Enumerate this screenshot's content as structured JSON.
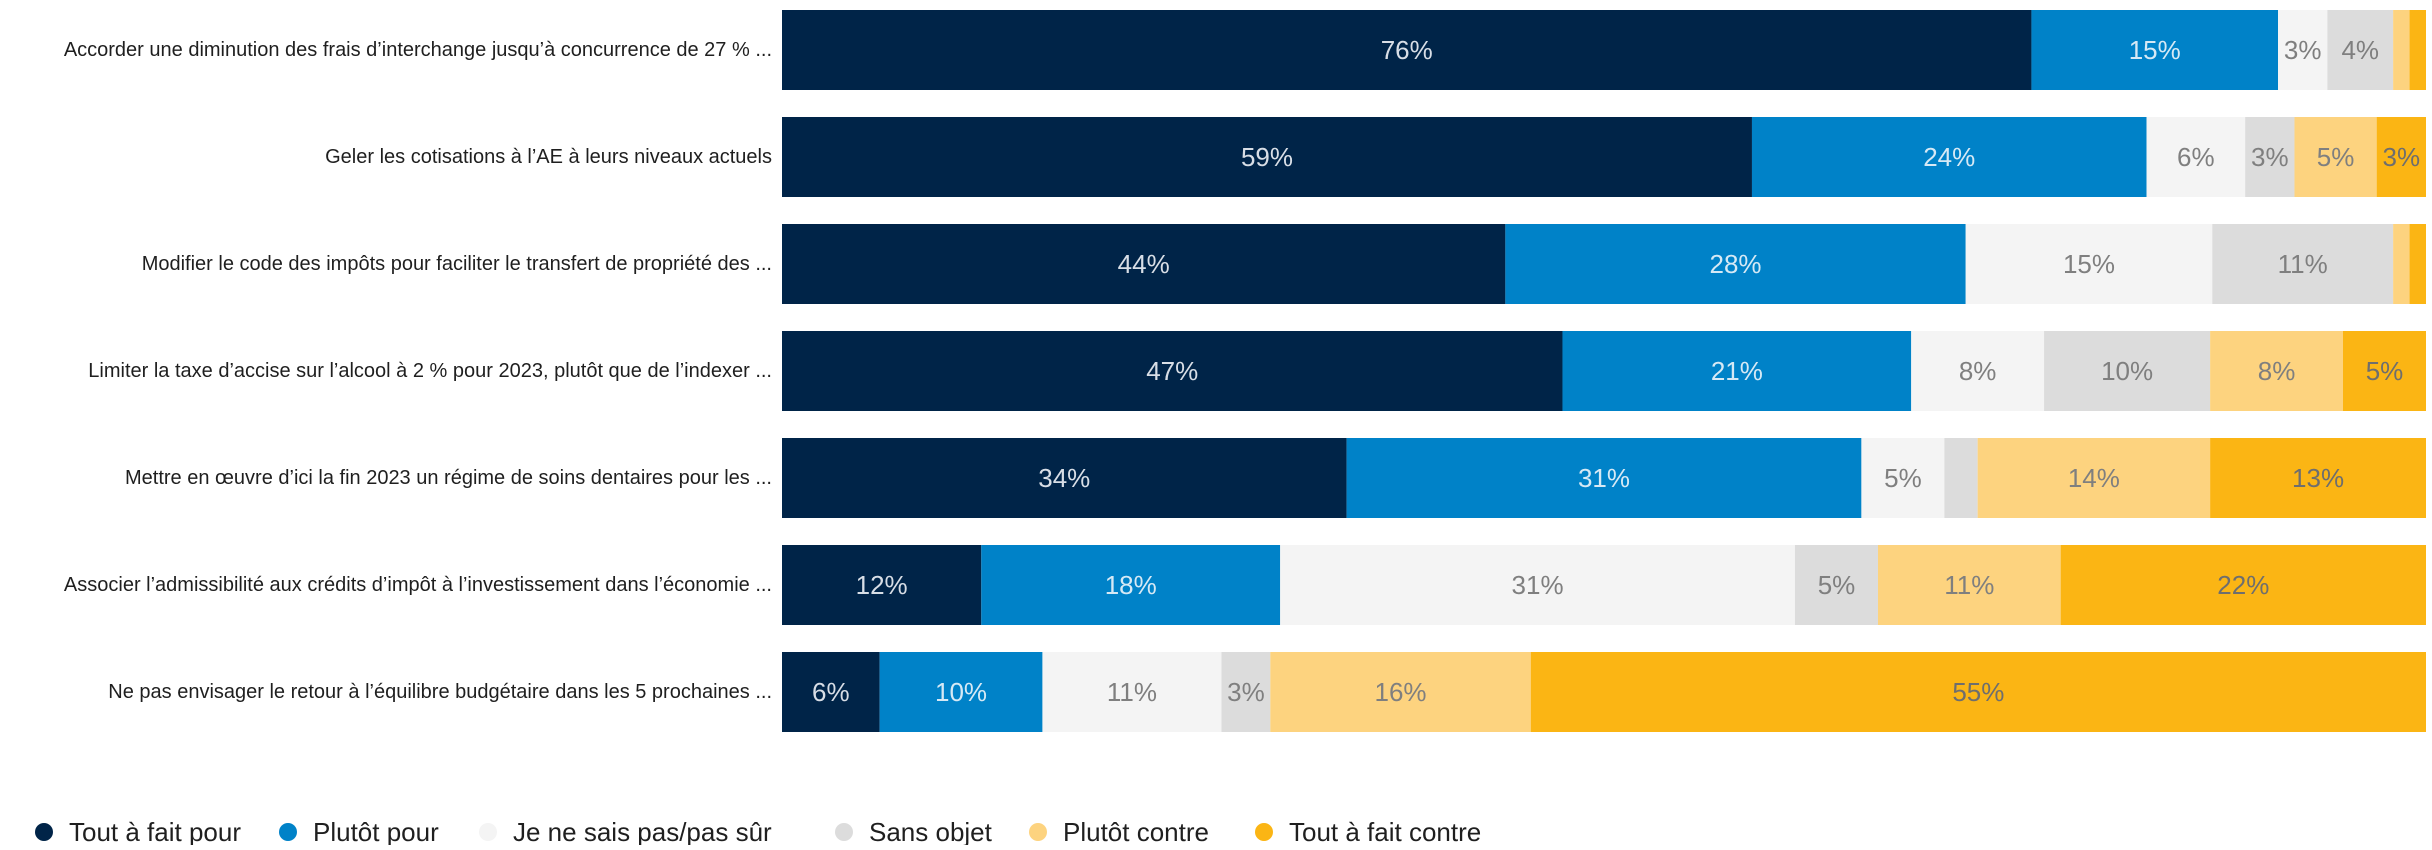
{
  "chart_data": {
    "type": "bar",
    "orientation": "horizontal",
    "stacked": true,
    "percent_stacked": true,
    "grid": false,
    "legend_position": "bottom-left",
    "categories": [
      "Accorder une diminution des frais d’interchange jusqu’à concurrence de 27 % ...",
      "Geler les cotisations à l’AE à leurs niveaux actuels",
      "Modifier le code des impôts pour faciliter le transfert de propriété des ...",
      "Limiter la taxe d’accise sur l’alcool à 2 % pour 2023, plutôt que de l’indexer ...",
      "Mettre en œuvre d’ici la fin 2023 un régime de soins dentaires pour les ...",
      "Associer l’admissibilité aux crédits d’impôt à l’investissement dans l’économie ...",
      "Ne pas envisager le retour à l’équilibre budgétaire dans les 5 prochaines ..."
    ],
    "series": [
      {
        "name": "Tout à fait pour",
        "color": "#002448",
        "label_color": "#d8dee6",
        "values": [
          76,
          59,
          44,
          47,
          34,
          12,
          6
        ],
        "labels": [
          "76%",
          "59%",
          "44%",
          "47%",
          "34%",
          "12%",
          "6%"
        ]
      },
      {
        "name": "Plutôt pour",
        "color": "#0082c8",
        "label_color": "#d6e9f5",
        "values": [
          15,
          24,
          28,
          21,
          31,
          18,
          10
        ],
        "labels": [
          "15%",
          "24%",
          "28%",
          "21%",
          "31%",
          "18%",
          "10%"
        ]
      },
      {
        "name": "Je ne sais pas/pas sûr",
        "color": "#f4f4f4",
        "label_color": "#7f7f7f",
        "values": [
          3,
          6,
          15,
          8,
          5,
          31,
          11
        ],
        "labels": [
          "3%",
          "6%",
          "15%",
          "8%",
          "5%",
          "31%",
          "11%"
        ]
      },
      {
        "name": "Sans objet",
        "color": "#dcdcdc",
        "label_color": "#7f7f7f",
        "values": [
          4,
          3,
          11,
          10,
          2,
          5,
          3
        ],
        "labels": [
          "4%",
          "3%",
          "11%",
          "10%",
          "",
          "5%",
          "3%"
        ]
      },
      {
        "name": "Plutôt contre",
        "color": "#fdd37f",
        "label_color": "#7f7f7f",
        "values": [
          1,
          5,
          1,
          8,
          14,
          11,
          16
        ],
        "labels": [
          "",
          "5%",
          "",
          "8%",
          "14%",
          "11%",
          "16%"
        ]
      },
      {
        "name": "Tout à fait contre",
        "color": "#fbb514",
        "label_color": "#6e6e6e",
        "values": [
          1,
          3,
          1,
          5,
          13,
          22,
          55
        ],
        "labels": [
          "",
          "3%",
          "",
          "5%",
          "13%",
          "22%",
          "55%"
        ]
      }
    ]
  }
}
